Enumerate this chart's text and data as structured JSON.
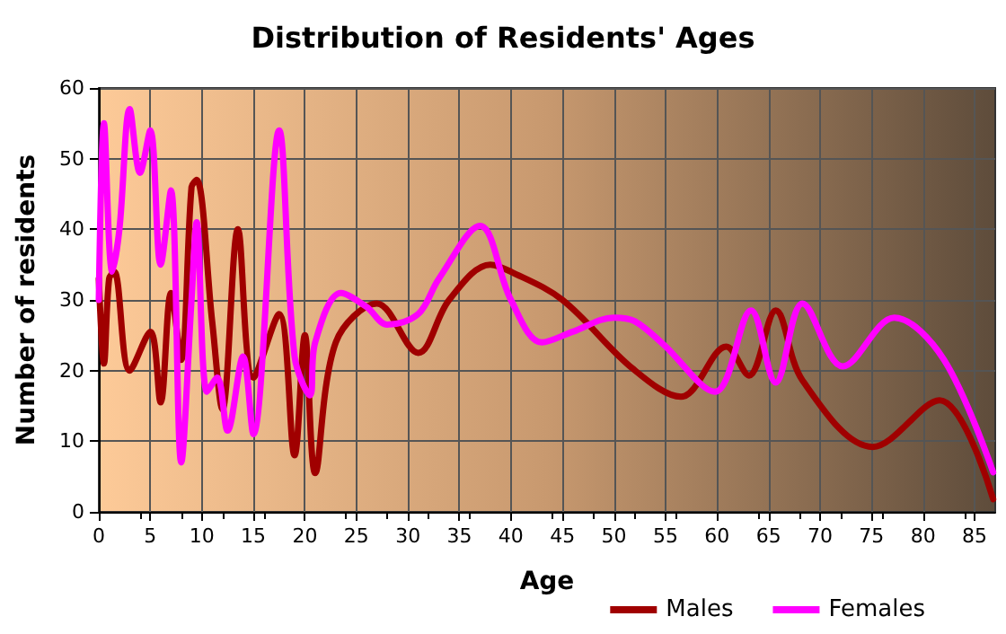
{
  "chart_data": {
    "type": "line",
    "title": "Distribution of Residents' Ages",
    "xlabel": "Age",
    "ylabel": "Number of residents",
    "xlim": [
      0,
      87
    ],
    "xticks": [
      0,
      5,
      10,
      15,
      20,
      25,
      30,
      35,
      40,
      45,
      50,
      55,
      60,
      65,
      70,
      75,
      80,
      85
    ],
    "ylim": [
      0,
      60
    ],
    "yticks": [
      0,
      10,
      20,
      30,
      40,
      50,
      60
    ],
    "grid": true,
    "legend": "bottom right",
    "marker": "none",
    "line_style": "solid",
    "series": [
      {
        "name": "Males",
        "color": "#a00000",
        "x": [
          0,
          0.5,
          1,
          1.5,
          3,
          5,
          6,
          7,
          8,
          9,
          9.5,
          11,
          12,
          13.5,
          15,
          17.5,
          19,
          20,
          21,
          23,
          27,
          31,
          34,
          38,
          40,
          45,
          51.8,
          56.5,
          60.9,
          63.1,
          65.7,
          68.3,
          75.1,
          81.6,
          86.8
        ],
        "values": [
          33,
          21,
          33,
          34,
          20,
          25.5,
          15.5,
          31,
          21.5,
          46,
          47,
          27,
          14.5,
          40,
          19,
          28,
          8,
          25,
          5.5,
          24,
          29.5,
          22.5,
          30,
          35,
          34,
          30,
          20.3,
          16.3,
          23.4,
          19.3,
          28.5,
          18.6,
          9.2,
          15.8,
          1.8
        ]
      },
      {
        "name": "Females",
        "color": "#ff00ff",
        "x": [
          0,
          0.5,
          1.3,
          2,
          3,
          4,
          5,
          6,
          7,
          8,
          9,
          9.5,
          10.5,
          11.5,
          12.5,
          14,
          15,
          17.5,
          19,
          20.5,
          21,
          23.5,
          26,
          28,
          31,
          33,
          37,
          40,
          43,
          46,
          50,
          52,
          54.8,
          59.8,
          63.3,
          65.7,
          68.3,
          72.2,
          77.2,
          82,
          86.8
        ],
        "values": [
          30,
          55,
          34,
          40,
          57,
          48,
          54,
          35,
          45.5,
          7,
          30,
          41,
          17,
          19,
          11.5,
          22,
          11,
          54,
          22,
          16.5,
          24,
          31,
          29,
          26.5,
          28,
          33,
          40.5,
          30,
          24,
          25.5,
          27.5,
          27,
          23.7,
          17,
          28.5,
          18.3,
          29.5,
          20.6,
          27.5,
          21.6,
          5.6
        ]
      }
    ]
  }
}
